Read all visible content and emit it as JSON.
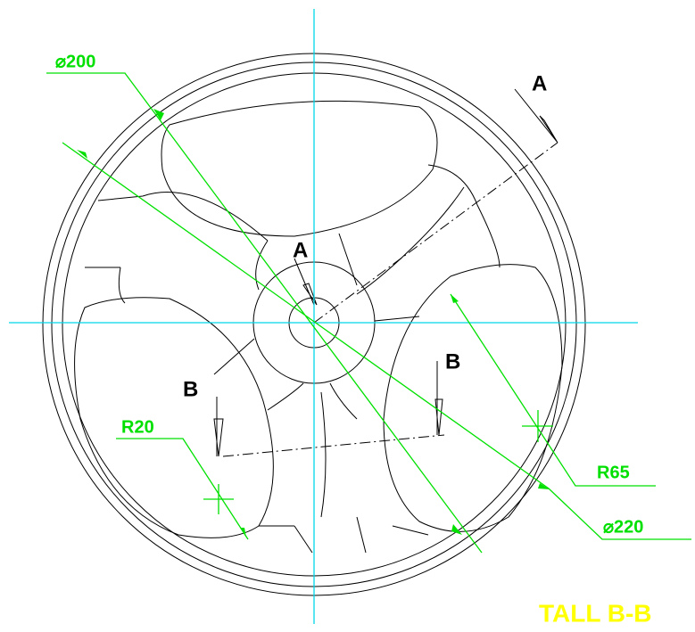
{
  "labels": {
    "dia200": "⌀200",
    "section_a_top": "A",
    "section_a_center": "A",
    "section_b_left": "B",
    "section_b_right": "B",
    "r20": "R20",
    "r65": "R65",
    "dia220": "⌀220",
    "view_title": "TALL B-B"
  }
}
